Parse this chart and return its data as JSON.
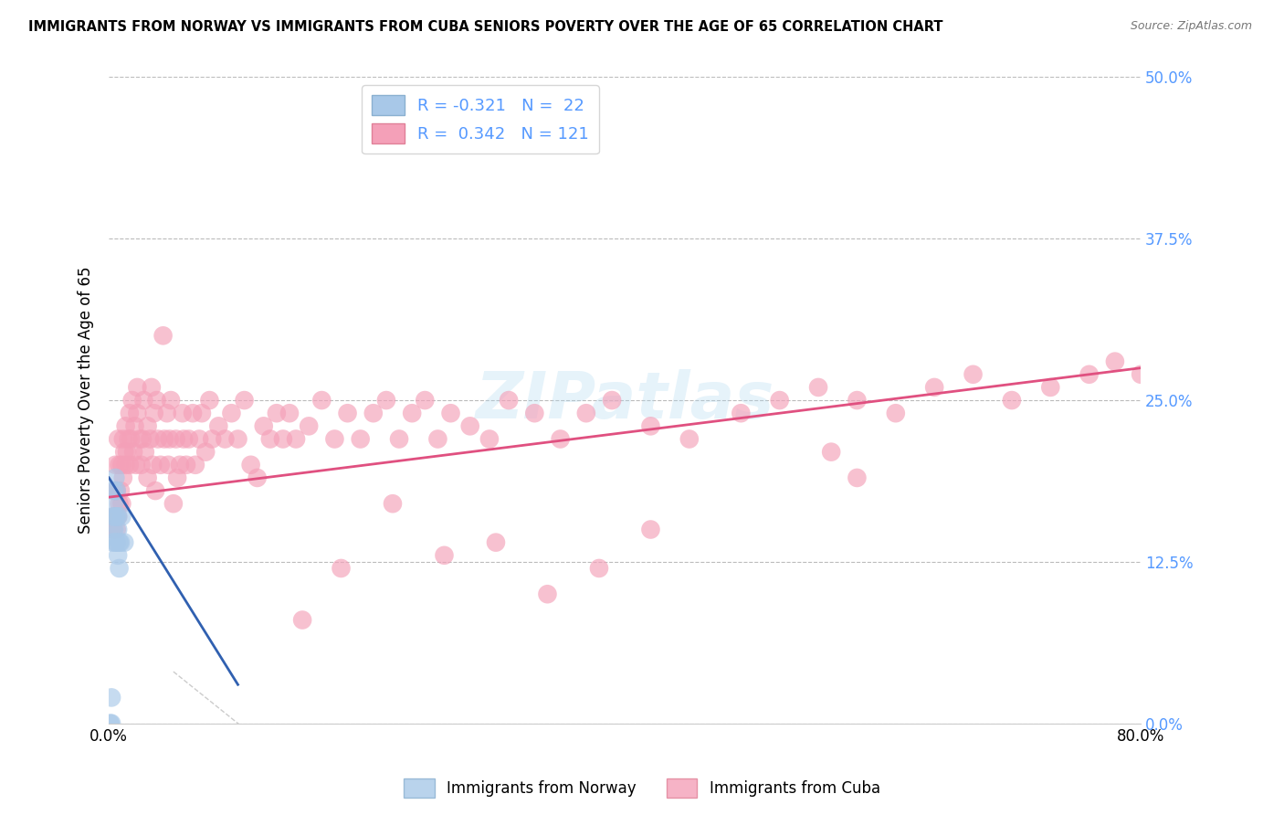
{
  "title": "IMMIGRANTS FROM NORWAY VS IMMIGRANTS FROM CUBA SENIORS POVERTY OVER THE AGE OF 65 CORRELATION CHART",
  "source": "Source: ZipAtlas.com",
  "ylabel": "Seniors Poverty Over the Age of 65",
  "xlim": [
    0,
    0.8
  ],
  "ylim": [
    0,
    0.5
  ],
  "norway_R": -0.321,
  "norway_N": 22,
  "cuba_R": 0.342,
  "cuba_N": 121,
  "norway_color": "#a8c8e8",
  "cuba_color": "#f4a0b8",
  "norway_line_color": "#3060b0",
  "cuba_line_color": "#e05080",
  "watermark_text": "ZIPatlas",
  "norway_x": [
    0.001,
    0.002,
    0.002,
    0.003,
    0.003,
    0.004,
    0.004,
    0.004,
    0.005,
    0.005,
    0.005,
    0.006,
    0.006,
    0.006,
    0.007,
    0.007,
    0.007,
    0.008,
    0.008,
    0.009,
    0.01,
    0.012
  ],
  "norway_y": [
    0.0,
    0.0,
    0.02,
    0.14,
    0.16,
    0.15,
    0.17,
    0.18,
    0.14,
    0.16,
    0.19,
    0.14,
    0.16,
    0.18,
    0.13,
    0.15,
    0.16,
    0.12,
    0.14,
    0.14,
    0.16,
    0.14
  ],
  "cuba_x": [
    0.003,
    0.004,
    0.005,
    0.005,
    0.006,
    0.006,
    0.007,
    0.007,
    0.008,
    0.008,
    0.009,
    0.01,
    0.01,
    0.011,
    0.011,
    0.012,
    0.013,
    0.013,
    0.014,
    0.015,
    0.016,
    0.016,
    0.017,
    0.018,
    0.019,
    0.02,
    0.021,
    0.022,
    0.022,
    0.024,
    0.025,
    0.026,
    0.027,
    0.028,
    0.03,
    0.03,
    0.032,
    0.033,
    0.034,
    0.035,
    0.036,
    0.037,
    0.038,
    0.04,
    0.042,
    0.043,
    0.045,
    0.046,
    0.047,
    0.048,
    0.05,
    0.052,
    0.053,
    0.055,
    0.057,
    0.058,
    0.06,
    0.062,
    0.065,
    0.067,
    0.07,
    0.072,
    0.075,
    0.078,
    0.08,
    0.085,
    0.09,
    0.095,
    0.1,
    0.105,
    0.11,
    0.115,
    0.12,
    0.125,
    0.13,
    0.135,
    0.14,
    0.145,
    0.155,
    0.165,
    0.175,
    0.185,
    0.195,
    0.205,
    0.215,
    0.225,
    0.235,
    0.245,
    0.255,
    0.265,
    0.28,
    0.295,
    0.31,
    0.33,
    0.35,
    0.37,
    0.39,
    0.42,
    0.45,
    0.49,
    0.52,
    0.55,
    0.58,
    0.61,
    0.64,
    0.67,
    0.7,
    0.73,
    0.76,
    0.78,
    0.8,
    0.56,
    0.58,
    0.42,
    0.38,
    0.34,
    0.3,
    0.26,
    0.22,
    0.18,
    0.15
  ],
  "cuba_y": [
    0.15,
    0.16,
    0.18,
    0.2,
    0.15,
    0.18,
    0.16,
    0.22,
    0.17,
    0.2,
    0.18,
    0.17,
    0.2,
    0.19,
    0.22,
    0.21,
    0.2,
    0.23,
    0.21,
    0.22,
    0.2,
    0.24,
    0.22,
    0.25,
    0.21,
    0.23,
    0.2,
    0.24,
    0.26,
    0.22,
    0.2,
    0.22,
    0.25,
    0.21,
    0.19,
    0.23,
    0.22,
    0.26,
    0.2,
    0.24,
    0.18,
    0.25,
    0.22,
    0.2,
    0.3,
    0.22,
    0.24,
    0.2,
    0.22,
    0.25,
    0.17,
    0.22,
    0.19,
    0.2,
    0.24,
    0.22,
    0.2,
    0.22,
    0.24,
    0.2,
    0.22,
    0.24,
    0.21,
    0.25,
    0.22,
    0.23,
    0.22,
    0.24,
    0.22,
    0.25,
    0.2,
    0.19,
    0.23,
    0.22,
    0.24,
    0.22,
    0.24,
    0.22,
    0.23,
    0.25,
    0.22,
    0.24,
    0.22,
    0.24,
    0.25,
    0.22,
    0.24,
    0.25,
    0.22,
    0.24,
    0.23,
    0.22,
    0.25,
    0.24,
    0.22,
    0.24,
    0.25,
    0.23,
    0.22,
    0.24,
    0.25,
    0.26,
    0.25,
    0.24,
    0.26,
    0.27,
    0.25,
    0.26,
    0.27,
    0.28,
    0.27,
    0.21,
    0.19,
    0.15,
    0.12,
    0.1,
    0.14,
    0.13,
    0.17,
    0.12,
    0.08
  ],
  "cuba_line_start_x": 0.0,
  "cuba_line_start_y": 0.175,
  "cuba_line_end_x": 0.8,
  "cuba_line_end_y": 0.275,
  "norway_line_start_x": 0.0,
  "norway_line_start_y": 0.19,
  "norway_line_end_x": 0.1,
  "norway_line_end_y": 0.03
}
